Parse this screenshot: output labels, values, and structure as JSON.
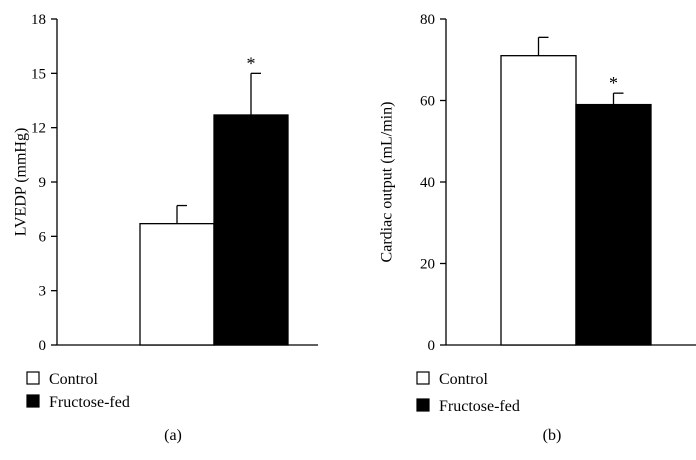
{
  "chart_data": [
    {
      "type": "bar",
      "panel_label": "(a)",
      "categories": [
        "Control",
        "Fructose-fed"
      ],
      "values": [
        6.7,
        12.7
      ],
      "errors": [
        1.0,
        2.3
      ],
      "annotations": [
        "",
        "*"
      ],
      "ylabel": "LVEDP (mmHg)",
      "xlabel": "",
      "ylim": [
        0,
        18
      ],
      "yticks": [
        0,
        3,
        6,
        9,
        12,
        15,
        18
      ],
      "legend": {
        "placement": "bottom-left",
        "entries": [
          {
            "label": "Control",
            "color": "#ffffff"
          },
          {
            "label": "Fructose-fed",
            "color": "#000000"
          }
        ]
      },
      "grid": false
    },
    {
      "type": "bar",
      "panel_label": "(b)",
      "categories": [
        "Control",
        "Fructose-fed"
      ],
      "values": [
        71,
        59
      ],
      "errors": [
        4.5,
        2.8
      ],
      "annotations": [
        "",
        "*"
      ],
      "ylabel": "Cardiac output (mL/min)",
      "xlabel": "",
      "ylim": [
        0,
        80
      ],
      "yticks": [
        0,
        20,
        40,
        60,
        80
      ],
      "legend": {
        "placement": "bottom-left",
        "entries": [
          {
            "label": "Control",
            "color": "#ffffff"
          },
          {
            "label": "Fructose-fed",
            "color": "#000000"
          }
        ]
      },
      "grid": false
    }
  ]
}
